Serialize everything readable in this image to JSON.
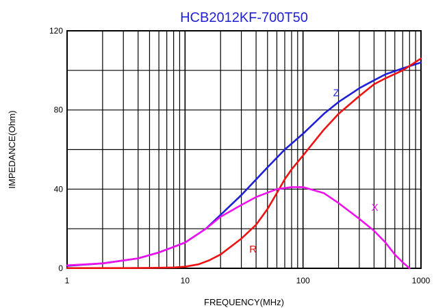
{
  "chart_data": {
    "type": "line",
    "title": "HCB2012KF-700T50",
    "xlabel": "FREQUENCY(MHz)",
    "ylabel": "IMPEDANCE(Ohm)",
    "x_scale": "log",
    "xlim": [
      1,
      1000
    ],
    "ylim": [
      0,
      120
    ],
    "x_ticks": [
      1,
      10,
      100,
      1000
    ],
    "x_tick_labels": [
      "1",
      "10",
      "100",
      "1000"
    ],
    "y_ticks": [
      0,
      40,
      80,
      120
    ],
    "y_tick_labels": [
      "0",
      "40",
      "80",
      "120"
    ],
    "grid": true,
    "series": [
      {
        "name": "Z",
        "color": "#1f1fd6",
        "points": [
          [
            1,
            1.2
          ],
          [
            2,
            2.5
          ],
          [
            4,
            5
          ],
          [
            6,
            8
          ],
          [
            10,
            13
          ],
          [
            15,
            20
          ],
          [
            20,
            27
          ],
          [
            30,
            37
          ],
          [
            50,
            51
          ],
          [
            70,
            60
          ],
          [
            100,
            68
          ],
          [
            150,
            78
          ],
          [
            200,
            84
          ],
          [
            300,
            91
          ],
          [
            400,
            95
          ],
          [
            500,
            98
          ],
          [
            700,
            101
          ],
          [
            1000,
            104
          ]
        ]
      },
      {
        "name": "R",
        "color": "#ee1111",
        "points": [
          [
            1,
            0.1
          ],
          [
            3,
            0.1
          ],
          [
            5,
            0.2
          ],
          [
            8,
            0.4
          ],
          [
            10,
            0.8
          ],
          [
            13,
            2
          ],
          [
            16,
            4
          ],
          [
            20,
            7
          ],
          [
            30,
            15
          ],
          [
            40,
            22
          ],
          [
            50,
            30
          ],
          [
            60,
            38
          ],
          [
            70,
            45
          ],
          [
            80,
            50
          ],
          [
            100,
            57
          ],
          [
            150,
            70
          ],
          [
            200,
            78
          ],
          [
            300,
            87
          ],
          [
            400,
            93
          ],
          [
            500,
            96
          ],
          [
            700,
            100
          ],
          [
            1000,
            106
          ]
        ]
      },
      {
        "name": "X",
        "color": "#ee11ee",
        "points": [
          [
            1,
            1.5
          ],
          [
            2,
            2.5
          ],
          [
            4,
            5
          ],
          [
            6,
            8
          ],
          [
            10,
            13
          ],
          [
            15,
            20
          ],
          [
            20,
            26
          ],
          [
            30,
            32
          ],
          [
            40,
            36
          ],
          [
            60,
            40
          ],
          [
            80,
            41
          ],
          [
            100,
            41
          ],
          [
            150,
            38
          ],
          [
            200,
            33
          ],
          [
            300,
            25
          ],
          [
            400,
            19
          ],
          [
            500,
            13
          ],
          [
            600,
            7
          ],
          [
            700,
            3
          ],
          [
            800,
            0
          ]
        ]
      }
    ],
    "series_label_positions": [
      [
        180,
        87
      ],
      [
        35,
        8
      ],
      [
        380,
        29
      ]
    ]
  }
}
